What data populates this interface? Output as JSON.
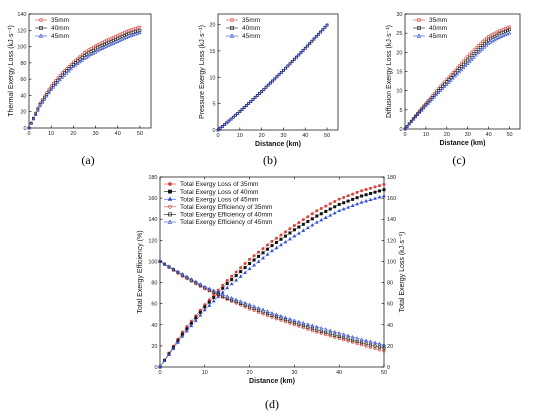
{
  "figure": {
    "panel_labels": [
      "(a)",
      "(b)",
      "(c)",
      "(d)"
    ]
  },
  "colors": {
    "s35": "#d4443a",
    "s40": "#111111",
    "s45": "#2e4bd3"
  },
  "chart_data": [
    {
      "panel": "(a)",
      "type": "scatter",
      "xlabel": "",
      "ylabel": "Thermal Exergy Loss (kJ·s⁻¹)",
      "xlim": [
        0,
        55
      ],
      "ylim": [
        0,
        140
      ],
      "xticks": [
        0,
        10,
        20,
        30,
        40,
        50
      ],
      "yticks": [
        0,
        20,
        40,
        60,
        80,
        100,
        120,
        140
      ],
      "legend_position": "top-left",
      "series": [
        {
          "name": "35mm",
          "marker": "circle",
          "x": [
            0,
            5,
            10,
            15,
            20,
            25,
            30,
            35,
            40,
            45,
            50
          ],
          "y": [
            0,
            31,
            52,
            68,
            81,
            93,
            101,
            108,
            114,
            120,
            124
          ]
        },
        {
          "name": "40mm",
          "marker": "square",
          "x": [
            0,
            5,
            10,
            15,
            20,
            25,
            30,
            35,
            40,
            45,
            50
          ],
          "y": [
            0,
            29,
            49,
            65,
            78,
            89,
            97,
            104,
            110,
            116,
            120
          ]
        },
        {
          "name": "45mm",
          "marker": "triangle",
          "x": [
            0,
            5,
            10,
            15,
            20,
            25,
            30,
            35,
            40,
            45,
            50
          ],
          "y": [
            0,
            27,
            47,
            62,
            75,
            85,
            93,
            100,
            106,
            112,
            117
          ]
        }
      ]
    },
    {
      "panel": "(b)",
      "type": "scatter",
      "xlabel": "Distance (km)",
      "ylabel": "Pressure Exergy Loss (kJ·s⁻¹)",
      "xlim": [
        0,
        55
      ],
      "ylim": [
        0,
        22
      ],
      "xticks": [
        0,
        10,
        20,
        30,
        40,
        50
      ],
      "yticks": [
        0,
        5,
        10,
        15,
        20
      ],
      "legend_position": "top-left",
      "series": [
        {
          "name": "35mm",
          "marker": "circle",
          "x": [
            0,
            5,
            10,
            15,
            20,
            25,
            30,
            35,
            40,
            45,
            50
          ],
          "y": [
            0,
            1.7,
            3.5,
            5.4,
            7.3,
            9.3,
            11.3,
            13.4,
            15.5,
            17.7,
            19.9
          ]
        },
        {
          "name": "40mm",
          "marker": "square",
          "x": [
            0,
            5,
            10,
            15,
            20,
            25,
            30,
            35,
            40,
            45,
            50
          ],
          "y": [
            0,
            1.7,
            3.5,
            5.4,
            7.3,
            9.3,
            11.3,
            13.4,
            15.5,
            17.7,
            19.9
          ]
        },
        {
          "name": "45mm",
          "marker": "triangle",
          "x": [
            0,
            5,
            10,
            15,
            20,
            25,
            30,
            35,
            40,
            45,
            50
          ],
          "y": [
            0,
            1.7,
            3.5,
            5.4,
            7.3,
            9.3,
            11.3,
            13.4,
            15.5,
            17.7,
            19.9
          ]
        }
      ]
    },
    {
      "panel": "(c)",
      "type": "scatter",
      "xlabel": "Distance (km)",
      "ylabel": "Diffusion Exergy Loss (kJ·s⁻¹)",
      "xlim": [
        0,
        55
      ],
      "ylim": [
        0,
        30
      ],
      "xticks": [
        0,
        10,
        20,
        30,
        40,
        50
      ],
      "yticks": [
        0,
        5,
        10,
        15,
        20,
        25,
        30
      ],
      "legend_position": "top-left",
      "series": [
        {
          "name": "35mm",
          "marker": "circle",
          "x": [
            0,
            5,
            10,
            15,
            20,
            25,
            30,
            35,
            40,
            45,
            50
          ],
          "y": [
            0,
            3.5,
            6.8,
            10,
            13,
            16,
            19,
            21.8,
            24.2,
            25.6,
            26.7
          ]
        },
        {
          "name": "40mm",
          "marker": "square",
          "x": [
            0,
            5,
            10,
            15,
            20,
            25,
            30,
            35,
            40,
            45,
            50
          ],
          "y": [
            0,
            3.3,
            6.4,
            9.4,
            12.3,
            15.2,
            18,
            20.8,
            23.2,
            24.8,
            25.9
          ]
        },
        {
          "name": "45mm",
          "marker": "triangle",
          "x": [
            0,
            5,
            10,
            15,
            20,
            25,
            30,
            35,
            40,
            45,
            50
          ],
          "y": [
            0,
            3.1,
            6,
            8.9,
            11.6,
            14.3,
            17,
            19.8,
            22.3,
            23.8,
            25
          ]
        }
      ]
    },
    {
      "panel": "(d)",
      "type": "line",
      "xlabel": "Distance (km)",
      "ylabel": "Total Exergy Efficiency (%)",
      "ylabel_right": "Total Exergy Loss (kJ·s⁻¹)",
      "xlim": [
        0,
        50
      ],
      "ylim": [
        0,
        180
      ],
      "ylim_right": [
        0,
        180
      ],
      "xticks": [
        0,
        10,
        20,
        30,
        40,
        50
      ],
      "yticks": [
        0,
        20,
        40,
        60,
        80,
        100,
        120,
        140,
        160,
        180
      ],
      "legend_position": "top-left",
      "series": [
        {
          "name": "Total Exergy Loss of 35mm",
          "marker": "circle-filled",
          "x": [
            0,
            5,
            10,
            15,
            20,
            25,
            30,
            35,
            40,
            45,
            50
          ],
          "y": [
            0,
            33,
            59,
            82,
            102,
            119,
            134,
            148,
            159,
            167,
            173
          ]
        },
        {
          "name": "Total Exergy Loss of 40mm",
          "marker": "square-filled",
          "x": [
            0,
            5,
            10,
            15,
            20,
            25,
            30,
            35,
            40,
            45,
            50
          ],
          "y": [
            0,
            31,
            57,
            79,
            98,
            115,
            130,
            143,
            154,
            162,
            168
          ]
        },
        {
          "name": "Total Exergy Loss of 45mm",
          "marker": "triangle-filled",
          "x": [
            0,
            5,
            10,
            15,
            20,
            25,
            30,
            35,
            40,
            45,
            50
          ],
          "y": [
            0,
            29,
            54,
            75,
            93,
            110,
            124,
            137,
            148,
            156,
            162
          ]
        },
        {
          "name": "Total Exergy Efficiency of 35mm",
          "marker": "circle-open",
          "x": [
            0,
            5,
            10,
            15,
            20,
            25,
            30,
            35,
            40,
            45,
            50
          ],
          "y": [
            100,
            86,
            74,
            64,
            55,
            47,
            40,
            33,
            27,
            21,
            15
          ]
        },
        {
          "name": "Total Exergy Efficiency of 40mm",
          "marker": "square-open",
          "x": [
            0,
            5,
            10,
            15,
            20,
            25,
            30,
            35,
            40,
            45,
            50
          ],
          "y": [
            100,
            87,
            75,
            65,
            57,
            49,
            42,
            35,
            29,
            23,
            18
          ]
        },
        {
          "name": "Total Exergy Efficiency of 45mm",
          "marker": "triangle-open",
          "x": [
            0,
            5,
            10,
            15,
            20,
            25,
            30,
            35,
            40,
            45,
            50
          ],
          "y": [
            100,
            88,
            76,
            67,
            59,
            51,
            44,
            38,
            32,
            26,
            21
          ]
        }
      ]
    }
  ]
}
